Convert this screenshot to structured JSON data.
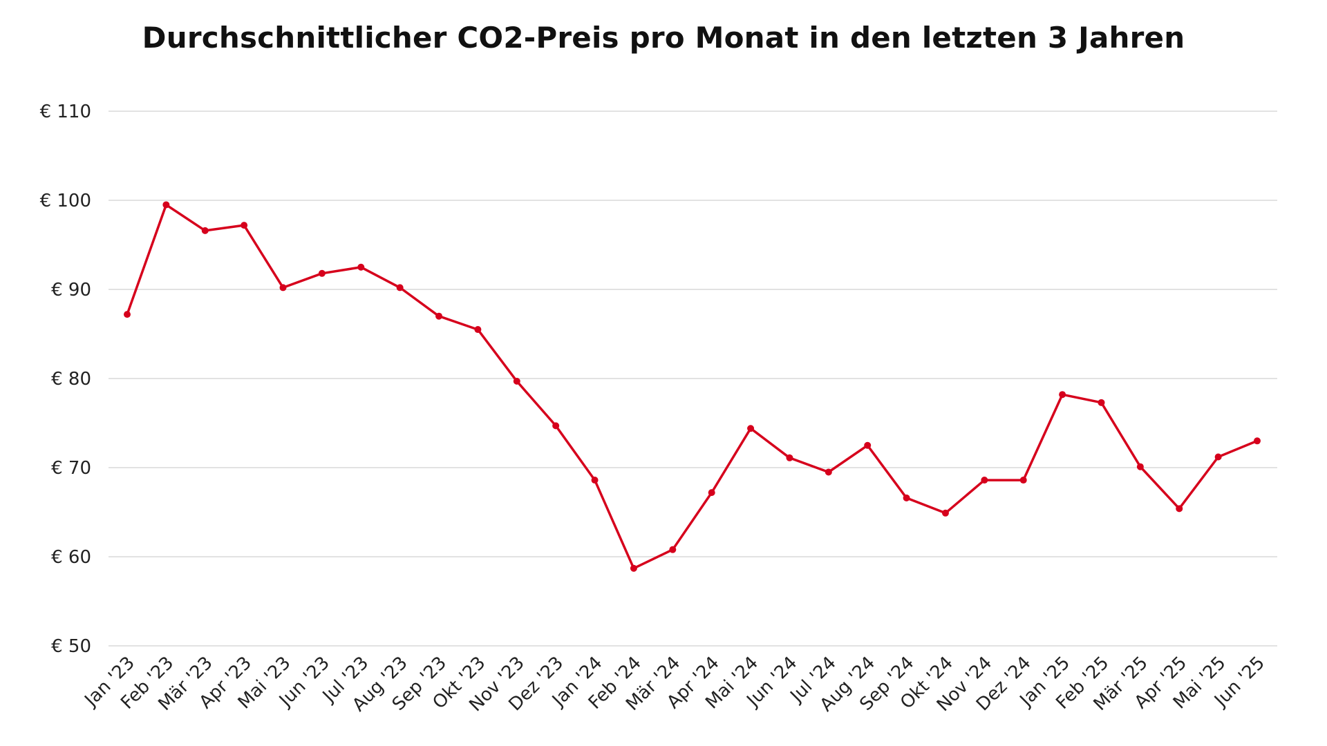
{
  "chart_data": {
    "type": "line",
    "title": "Durchschnittlicher CO2-Preis pro Monat in den letzten 3 Jahren",
    "xlabel": "",
    "ylabel": "",
    "categories": [
      "Jan '23",
      "Feb '23",
      "Mär '23",
      "Apr '23",
      "Mai '23",
      "Jun '23",
      "Jul '23",
      "Aug '23",
      "Sep '23",
      "Okt '23",
      "Nov '23",
      "Dez '23",
      "Jan '24",
      "Feb '24",
      "Mär '24",
      "Apr '24",
      "Mai '24",
      "Jun '24",
      "Jul '24",
      "Aug '24",
      "Sep '24",
      "Okt '24",
      "Nov '24",
      "Dez '24",
      "Jan '25",
      "Feb '25",
      "Mär '25",
      "Apr '25",
      "Mai '25",
      "Jun '25"
    ],
    "series": [
      {
        "values": [
          87.2,
          99.5,
          96.6,
          97.2,
          90.2,
          91.8,
          92.5,
          90.2,
          87.0,
          85.5,
          79.7,
          74.7,
          68.6,
          58.7,
          60.8,
          67.2,
          74.4,
          71.1,
          69.5,
          72.5,
          66.6,
          64.9,
          68.6,
          68.6,
          78.2,
          77.3,
          70.1,
          65.4,
          71.2,
          73.0
        ]
      }
    ],
    "ylim": [
      50,
      110
    ],
    "yticks": [
      50,
      60,
      70,
      80,
      90,
      100,
      110
    ],
    "ytick_labels": [
      "€ 50",
      "€ 60",
      "€ 70",
      "€ 80",
      "€ 90",
      "€ 100",
      "€ 110"
    ],
    "grid": true,
    "legend": "none",
    "line_color": "#d6001c",
    "grid_color": "#d9d9d9"
  }
}
